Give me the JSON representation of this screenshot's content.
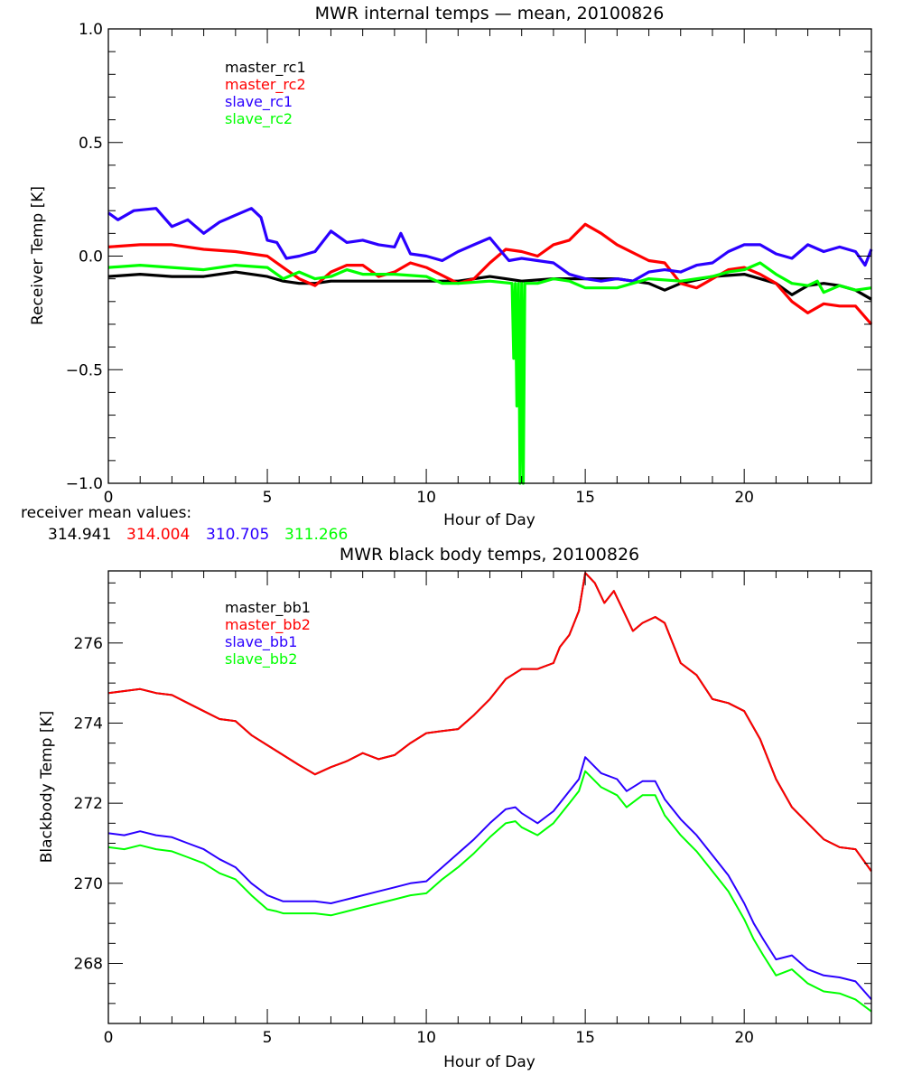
{
  "chart_data": [
    {
      "type": "line",
      "title": "MWR internal temps — mean, 20100826",
      "xlabel": "Hour of Day",
      "ylabel": "Receiver Temp [K]",
      "xlim": [
        0,
        24
      ],
      "ylim": [
        -1.0,
        1.0
      ],
      "xticks": [
        "0",
        "5",
        "10",
        "15",
        "20"
      ],
      "yticks": [
        "1.0",
        "0.5",
        "0.0",
        "-0.5",
        "-1.0"
      ],
      "ytick_values": [
        1.0,
        0.5,
        0.0,
        -0.5,
        -1.0
      ],
      "grid": false,
      "legend_position": "top-left",
      "series": [
        {
          "name": "master_rc1",
          "color": "#000000",
          "x": [
            0,
            1,
            2,
            3,
            4,
            5,
            5.5,
            6,
            6.5,
            7,
            8,
            9,
            10,
            11,
            12,
            12.5,
            13,
            14,
            15,
            16,
            17,
            17.5,
            18,
            19,
            20,
            20.5,
            21,
            21.5,
            22,
            22.5,
            23,
            23.5,
            24
          ],
          "y": [
            -0.09,
            -0.08,
            -0.09,
            -0.09,
            -0.07,
            -0.09,
            -0.11,
            -0.12,
            -0.12,
            -0.11,
            -0.11,
            -0.11,
            -0.11,
            -0.11,
            -0.09,
            -0.1,
            -0.11,
            -0.1,
            -0.1,
            -0.1,
            -0.12,
            -0.15,
            -0.12,
            -0.09,
            -0.08,
            -0.1,
            -0.12,
            -0.17,
            -0.13,
            -0.12,
            -0.13,
            -0.15,
            -0.19
          ]
        },
        {
          "name": "master_rc2",
          "color": "#ff0000",
          "x": [
            0,
            1,
            2,
            3,
            4,
            5,
            5.5,
            6,
            6.5,
            7,
            7.5,
            8,
            8.5,
            9,
            9.5,
            10,
            11,
            11.5,
            12,
            12.5,
            13,
            13.5,
            14,
            14.5,
            15,
            15.5,
            16,
            17,
            17.5,
            18,
            18.5,
            19,
            19.5,
            20,
            20.5,
            21,
            21.5,
            22,
            22.5,
            23,
            23.5,
            24
          ],
          "y": [
            0.04,
            0.05,
            0.05,
            0.03,
            0.02,
            0.0,
            -0.05,
            -0.1,
            -0.13,
            -0.07,
            -0.04,
            -0.04,
            -0.09,
            -0.07,
            -0.03,
            -0.05,
            -0.12,
            -0.1,
            -0.03,
            0.03,
            0.02,
            0.0,
            0.05,
            0.07,
            0.14,
            0.1,
            0.05,
            -0.02,
            -0.03,
            -0.12,
            -0.14,
            -0.1,
            -0.06,
            -0.05,
            -0.08,
            -0.12,
            -0.2,
            -0.25,
            -0.21,
            -0.22,
            -0.22,
            -0.3
          ]
        },
        {
          "name": "slave_rc1",
          "color": "#2b00ff",
          "x": [
            0,
            0.3,
            0.8,
            1.5,
            2,
            2.5,
            3,
            3.5,
            4,
            4.5,
            4.8,
            5,
            5.3,
            5.6,
            6,
            6.5,
            7,
            7.5,
            8,
            8.5,
            9,
            9.2,
            9.5,
            10,
            10.5,
            11,
            11.5,
            12,
            12.3,
            12.6,
            13,
            13.5,
            14,
            14.5,
            15,
            15.5,
            16,
            16.5,
            17,
            17.5,
            18,
            18.5,
            19,
            19.5,
            20,
            20.5,
            21,
            21.5,
            22,
            22.5,
            23,
            23.5,
            23.8,
            24
          ],
          "y": [
            0.19,
            0.16,
            0.2,
            0.21,
            0.13,
            0.16,
            0.1,
            0.15,
            0.18,
            0.21,
            0.17,
            0.07,
            0.06,
            -0.01,
            0.0,
            0.02,
            0.11,
            0.06,
            0.07,
            0.05,
            0.04,
            0.1,
            0.01,
            0.0,
            -0.02,
            0.02,
            0.05,
            0.08,
            0.03,
            -0.02,
            -0.01,
            -0.02,
            -0.03,
            -0.08,
            -0.1,
            -0.11,
            -0.1,
            -0.11,
            -0.07,
            -0.06,
            -0.07,
            -0.04,
            -0.03,
            0.02,
            0.05,
            0.05,
            0.01,
            -0.01,
            0.05,
            0.02,
            0.04,
            0.02,
            -0.04,
            0.03
          ]
        },
        {
          "name": "slave_rc2",
          "color": "#00ff00",
          "x": [
            0,
            1,
            2,
            3,
            4,
            5,
            5.5,
            6,
            6.5,
            7,
            7.5,
            8,
            9,
            10,
            10.5,
            11,
            12,
            12.7,
            12.75,
            12.8,
            12.85,
            12.9,
            12.95,
            13,
            13.05,
            13.1,
            13.5,
            14,
            14.5,
            15,
            15.5,
            16,
            17,
            18,
            19,
            19.5,
            20,
            20.5,
            21,
            21.5,
            22,
            22.3,
            22.5,
            23,
            23.5,
            24
          ],
          "y": [
            -0.05,
            -0.04,
            -0.05,
            -0.06,
            -0.04,
            -0.05,
            -0.1,
            -0.07,
            -0.1,
            -0.09,
            -0.06,
            -0.08,
            -0.08,
            -0.09,
            -0.12,
            -0.12,
            -0.11,
            -0.12,
            -0.45,
            -0.12,
            -0.66,
            -0.12,
            -1.0,
            -0.12,
            -1.0,
            -0.12,
            -0.12,
            -0.1,
            -0.11,
            -0.14,
            -0.14,
            -0.14,
            -0.1,
            -0.11,
            -0.09,
            -0.07,
            -0.06,
            -0.03,
            -0.08,
            -0.12,
            -0.13,
            -0.11,
            -0.16,
            -0.13,
            -0.15,
            -0.14
          ]
        }
      ]
    },
    {
      "type": "line",
      "title": "MWR black body temps, 20100826",
      "xlabel": "Hour of Day",
      "ylabel": "Blackbody Temp [K]",
      "xlim": [
        0,
        24
      ],
      "ylim": [
        266.5,
        277.8
      ],
      "xticks": [
        "0",
        "5",
        "10",
        "15",
        "20"
      ],
      "yticks": [
        "276",
        "274",
        "272",
        "270",
        "268"
      ],
      "ytick_values": [
        276,
        274,
        272,
        270,
        268
      ],
      "grid": false,
      "legend_position": "top-left",
      "series": [
        {
          "name": "master_bb1",
          "color": "#000000",
          "x": [
            0,
            0.5,
            1,
            1.5,
            2,
            2.5,
            3,
            3.5,
            4,
            4.5,
            5,
            5.5,
            6,
            6.5,
            7,
            7.5,
            8,
            8.5,
            9,
            9.5,
            10,
            10.5,
            11,
            11.5,
            12,
            12.5,
            13,
            13.5,
            14,
            14.2,
            14.5,
            14.8,
            15,
            15.3,
            15.6,
            15.9,
            16.2,
            16.5,
            16.8,
            17.2,
            17.5,
            18,
            18.5,
            19,
            19.5,
            20,
            20.5,
            21,
            21.5,
            22,
            22.5,
            23,
            23.5,
            24
          ],
          "y": [
            274.75,
            274.8,
            274.85,
            274.75,
            274.7,
            274.5,
            274.3,
            274.1,
            274.05,
            273.7,
            273.45,
            273.2,
            272.95,
            272.72,
            272.9,
            273.05,
            273.25,
            273.1,
            273.2,
            273.5,
            273.75,
            273.8,
            273.85,
            274.2,
            274.6,
            275.1,
            275.35,
            275.35,
            275.5,
            275.9,
            276.2,
            276.8,
            277.75,
            277.5,
            277.0,
            277.3,
            276.8,
            276.3,
            276.5,
            276.65,
            276.5,
            275.5,
            275.2,
            274.6,
            274.5,
            274.3,
            273.6,
            272.6,
            271.9,
            271.5,
            271.1,
            270.9,
            270.85,
            270.3
          ]
        },
        {
          "name": "master_bb2",
          "color": "#ff0000",
          "x": [
            0,
            0.5,
            1,
            1.5,
            2,
            2.5,
            3,
            3.5,
            4,
            4.5,
            5,
            5.5,
            6,
            6.5,
            7,
            7.5,
            8,
            8.5,
            9,
            9.5,
            10,
            10.5,
            11,
            11.5,
            12,
            12.5,
            13,
            13.5,
            14,
            14.2,
            14.5,
            14.8,
            15,
            15.3,
            15.6,
            15.9,
            16.2,
            16.5,
            16.8,
            17.2,
            17.5,
            18,
            18.5,
            19,
            19.5,
            20,
            20.5,
            21,
            21.5,
            22,
            22.5,
            23,
            23.5,
            24
          ],
          "y": [
            274.75,
            274.8,
            274.85,
            274.75,
            274.7,
            274.5,
            274.3,
            274.1,
            274.05,
            273.7,
            273.45,
            273.2,
            272.95,
            272.72,
            272.9,
            273.05,
            273.25,
            273.1,
            273.2,
            273.5,
            273.75,
            273.8,
            273.85,
            274.2,
            274.6,
            275.1,
            275.35,
            275.35,
            275.5,
            275.9,
            276.2,
            276.8,
            277.75,
            277.5,
            277.0,
            277.3,
            276.8,
            276.3,
            276.5,
            276.65,
            276.5,
            275.5,
            275.2,
            274.6,
            274.5,
            274.3,
            273.6,
            272.6,
            271.9,
            271.5,
            271.1,
            270.9,
            270.85,
            270.3
          ]
        },
        {
          "name": "slave_bb1",
          "color": "#2b00ff",
          "x": [
            0,
            0.5,
            1,
            1.5,
            2,
            2.5,
            3,
            3.5,
            4,
            4.5,
            5,
            5.5,
            6,
            6.5,
            7,
            7.5,
            8,
            8.5,
            9,
            9.5,
            10,
            10.5,
            11,
            11.5,
            12,
            12.5,
            12.8,
            13,
            13.5,
            14,
            14.5,
            14.8,
            15,
            15.5,
            16,
            16.3,
            16.8,
            17.2,
            17.5,
            18,
            18.5,
            19,
            19.5,
            20,
            20.3,
            20.6,
            21,
            21.5,
            22,
            22.5,
            23,
            23.5,
            24
          ],
          "y": [
            271.25,
            271.2,
            271.3,
            271.2,
            271.15,
            271.0,
            270.85,
            270.6,
            270.4,
            270.0,
            269.7,
            269.55,
            269.55,
            269.55,
            269.5,
            269.6,
            269.7,
            269.8,
            269.9,
            270.0,
            270.05,
            270.4,
            270.75,
            271.1,
            271.5,
            271.85,
            271.9,
            271.75,
            271.5,
            271.8,
            272.3,
            272.6,
            273.15,
            272.75,
            272.6,
            272.3,
            272.55,
            272.55,
            272.1,
            271.6,
            271.2,
            270.7,
            270.2,
            269.5,
            269.0,
            268.6,
            268.1,
            268.2,
            267.85,
            267.7,
            267.65,
            267.55,
            267.1
          ]
        },
        {
          "name": "slave_bb2",
          "color": "#00ff00",
          "x": [
            0,
            0.5,
            1,
            1.5,
            2,
            2.5,
            3,
            3.5,
            4,
            4.5,
            5,
            5.3,
            5.5,
            6,
            6.5,
            7,
            7.5,
            8,
            8.5,
            9,
            9.5,
            10,
            10.5,
            11,
            11.5,
            12,
            12.5,
            12.8,
            13,
            13.5,
            14,
            14.5,
            14.8,
            15,
            15.5,
            16,
            16.3,
            16.8,
            17.2,
            17.5,
            18,
            18.5,
            19,
            19.5,
            20,
            20.3,
            20.6,
            21,
            21.5,
            22,
            22.5,
            23,
            23.5,
            24
          ],
          "y": [
            270.9,
            270.85,
            270.95,
            270.85,
            270.8,
            270.65,
            270.5,
            270.25,
            270.1,
            269.7,
            269.35,
            269.3,
            269.25,
            269.25,
            269.25,
            269.2,
            269.3,
            269.4,
            269.5,
            269.6,
            269.7,
            269.75,
            270.1,
            270.4,
            270.75,
            271.15,
            271.5,
            271.55,
            271.4,
            271.2,
            271.5,
            272.0,
            272.3,
            272.8,
            272.4,
            272.2,
            271.9,
            272.2,
            272.2,
            271.7,
            271.2,
            270.8,
            270.3,
            269.8,
            269.1,
            268.6,
            268.2,
            267.7,
            267.85,
            267.5,
            267.3,
            267.25,
            267.1,
            266.8
          ]
        }
      ]
    }
  ],
  "legend_top": [
    "master_rc1",
    "master_rc2",
    "slave_rc1",
    "slave_rc2"
  ],
  "legend_bottom": [
    "master_bb1",
    "master_bb2",
    "slave_bb1",
    "slave_bb2"
  ],
  "receiver_means": {
    "label": "receiver mean values:",
    "values": [
      "314.941",
      "314.004",
      "310.705",
      "311.266"
    ],
    "colors": [
      "#000000",
      "#ff0000",
      "#2b00ff",
      "#00ff00"
    ]
  }
}
